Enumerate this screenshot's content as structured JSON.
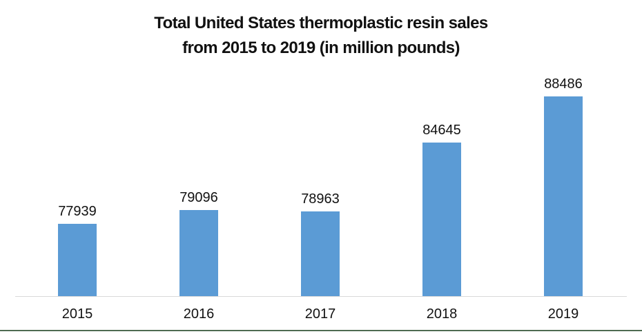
{
  "chart_data": {
    "type": "bar",
    "title": "Total United States thermoplastic resin sales from 2015 to 2019 (in million pounds)",
    "title_lines": [
      "Total United States thermoplastic resin sales",
      "from 2015 to 2019 (in million pounds)"
    ],
    "categories": [
      "2015",
      "2016",
      "2017",
      "2018",
      "2019"
    ],
    "values": [
      77939,
      79096,
      78963,
      84645,
      88486
    ],
    "xlabel": "",
    "ylabel": "",
    "ylim": [
      72000,
      90000
    ],
    "y_axis_visible": false,
    "grid": false,
    "legend": false,
    "data_labels": true,
    "colors": {
      "bar": "#5B9BD5",
      "axis_line": "#D9D9D9",
      "text": "#111111",
      "bottom_border": "#4E6B52",
      "background": "#FFFFFF"
    }
  }
}
